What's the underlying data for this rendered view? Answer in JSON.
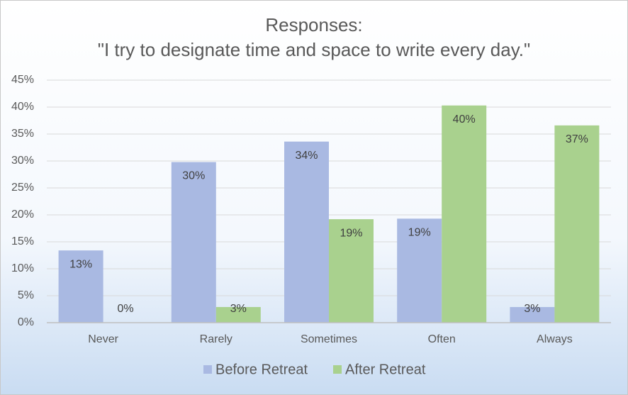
{
  "chart_data": {
    "type": "bar",
    "title": "Responses:",
    "subtitle": "\"I try to designate time and space to write every day.\"",
    "categories": [
      "Never",
      "Rarely",
      "Sometimes",
      "Often",
      "Always"
    ],
    "series": [
      {
        "name": "Before Retreat",
        "color": "#a9b9e2",
        "values": [
          13.4,
          29.8,
          33.6,
          19.3,
          2.9
        ],
        "value_labels": [
          "13%",
          "30%",
          "34%",
          "19%",
          "3%"
        ]
      },
      {
        "name": "After Retreat",
        "color": "#a9d18e",
        "values": [
          0,
          2.9,
          19.2,
          40.3,
          36.6
        ],
        "value_labels": [
          "0%",
          "3%",
          "19%",
          "40%",
          "37%"
        ]
      }
    ],
    "ylim": [
      0,
      45
    ],
    "yticks": [
      {
        "value": 0,
        "label": "0%"
      },
      {
        "value": 5,
        "label": "5%"
      },
      {
        "value": 10,
        "label": "10%"
      },
      {
        "value": 15,
        "label": "15%"
      },
      {
        "value": 20,
        "label": "20%"
      },
      {
        "value": 25,
        "label": "25%"
      },
      {
        "value": 30,
        "label": "30%"
      },
      {
        "value": 35,
        "label": "35%"
      },
      {
        "value": 40,
        "label": "40%"
      },
      {
        "value": 45,
        "label": "45%"
      }
    ],
    "grid": true,
    "legend": "bottom"
  }
}
